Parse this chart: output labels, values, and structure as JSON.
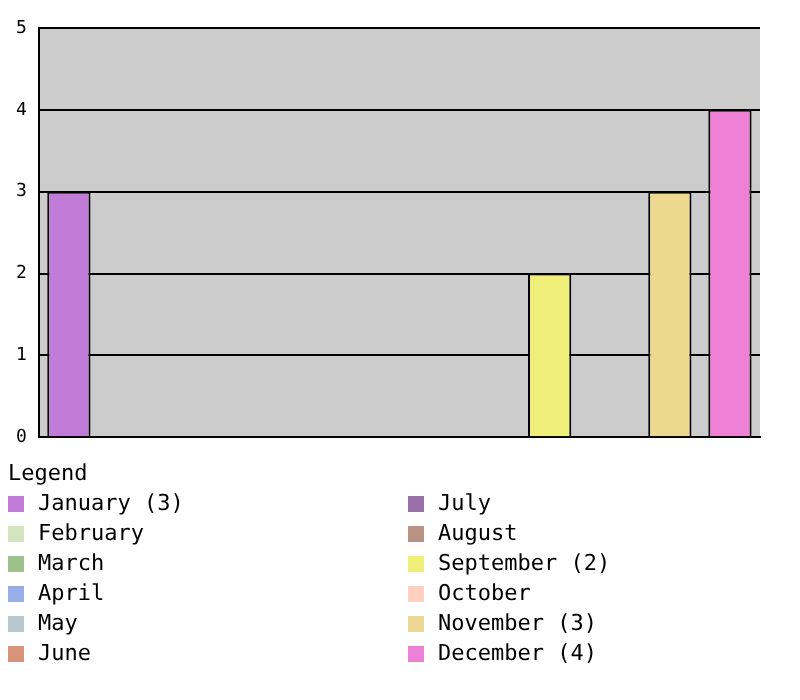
{
  "chart_data": {
    "type": "bar",
    "categories": [
      null,
      null,
      null,
      null,
      null,
      null,
      null,
      null,
      null,
      null,
      null,
      null
    ],
    "series": [
      {
        "name": "January (3)",
        "color": "#c07cd6",
        "values": [
          3,
          null,
          null,
          null,
          null,
          null,
          null,
          null,
          null,
          null,
          null,
          null
        ]
      },
      {
        "name": "February",
        "color": "#d4e4c0",
        "values": [
          null,
          0,
          null,
          null,
          null,
          null,
          null,
          null,
          null,
          null,
          null,
          null
        ]
      },
      {
        "name": "March",
        "color": "#9ec08a",
        "values": [
          null,
          null,
          0,
          null,
          null,
          null,
          null,
          null,
          null,
          null,
          null,
          null
        ]
      },
      {
        "name": "April",
        "color": "#98aee8",
        "values": [
          null,
          null,
          null,
          0,
          null,
          null,
          null,
          null,
          null,
          null,
          null,
          null
        ]
      },
      {
        "name": "May",
        "color": "#b6c8d0",
        "values": [
          null,
          null,
          null,
          null,
          0,
          null,
          null,
          null,
          null,
          null,
          null,
          null
        ]
      },
      {
        "name": "June",
        "color": "#d89478",
        "values": [
          null,
          null,
          null,
          null,
          null,
          0,
          null,
          null,
          null,
          null,
          null,
          null
        ]
      },
      {
        "name": "July",
        "color": "#9a70a6",
        "values": [
          null,
          null,
          null,
          null,
          null,
          null,
          0,
          null,
          null,
          null,
          null,
          null
        ]
      },
      {
        "name": "August",
        "color": "#b89284",
        "values": [
          null,
          null,
          null,
          null,
          null,
          null,
          null,
          0,
          null,
          null,
          null,
          null
        ]
      },
      {
        "name": "September (2)",
        "color": "#eeee78",
        "values": [
          null,
          null,
          null,
          null,
          null,
          null,
          null,
          null,
          2,
          null,
          null,
          null
        ]
      },
      {
        "name": "October",
        "color": "#ffd0c0",
        "values": [
          null,
          null,
          null,
          null,
          null,
          null,
          null,
          null,
          null,
          0,
          null,
          null
        ]
      },
      {
        "name": "November (3)",
        "color": "#eed890",
        "values": [
          null,
          null,
          null,
          null,
          null,
          null,
          null,
          null,
          null,
          null,
          3,
          null
        ]
      },
      {
        "name": "December (4)",
        "color": "#ee80d6",
        "values": [
          null,
          null,
          null,
          null,
          null,
          null,
          null,
          null,
          null,
          null,
          null,
          4
        ]
      }
    ],
    "ylim": [
      0,
      5
    ],
    "yticks": [
      0,
      1,
      2,
      3,
      4,
      5
    ],
    "grid": "y",
    "legend": "bottom",
    "legend_title": "Legend",
    "tick_labels": "y"
  }
}
